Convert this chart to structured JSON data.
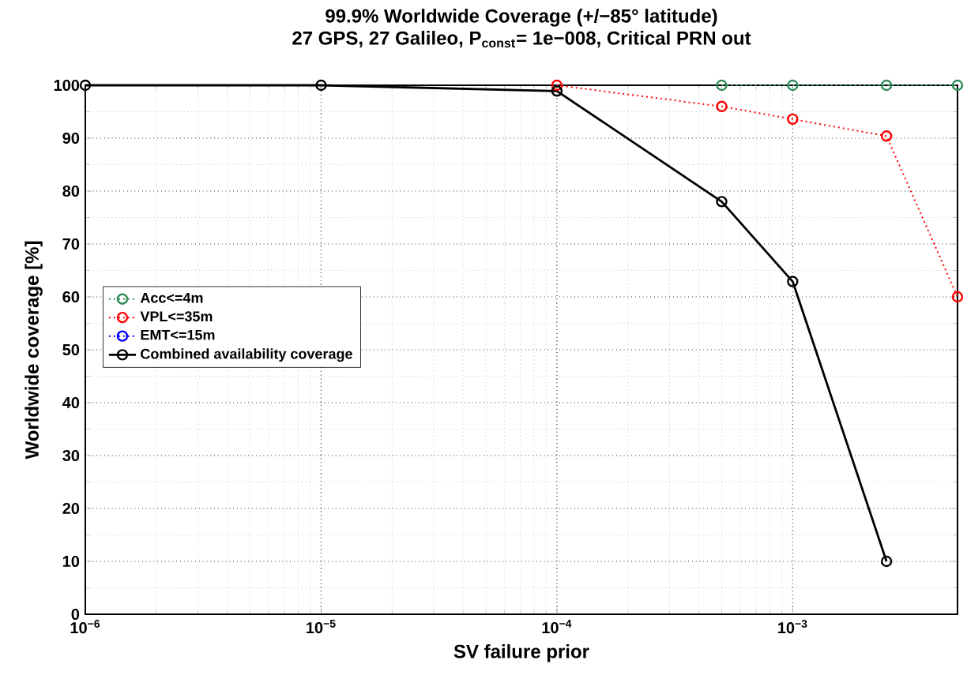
{
  "chart_data": {
    "type": "line",
    "title": "99.9% Worldwide Coverage (+/−85° latitude)",
    "subtitle": "27 GPS, 27 Galileo,  P$_{const}$= 1e−008, Critical PRN out",
    "xlabel": "SV failure prior",
    "ylabel": "Worldwide coverage [%]",
    "x": [
      1e-06,
      1e-05,
      0.0001,
      0.0005,
      0.001,
      0.0025,
      0.005
    ],
    "series": [
      {
        "name": "Acc<=4m",
        "color": "#2e8b57",
        "values": [
          null,
          null,
          null,
          100,
          100,
          100,
          100
        ],
        "line_style": "dotted",
        "marker": "circle"
      },
      {
        "name": "VPL<=35m",
        "color": "#ff0000",
        "values": [
          null,
          null,
          100,
          96,
          93.6,
          90.4,
          60
        ],
        "line_style": "dotted",
        "marker": "circle"
      },
      {
        "name": "EMT<=15m",
        "color": "#0000ff",
        "values": [
          null,
          null,
          null,
          null,
          null,
          null,
          null
        ],
        "line_style": "dotted",
        "marker": "circle"
      },
      {
        "name": "Combined availability coverage",
        "color": "#000000",
        "values": [
          100,
          100,
          98.9,
          78,
          62.9,
          10,
          null
        ],
        "line_style": "solid",
        "marker": "circle"
      }
    ],
    "log": "x",
    "xlim": [
      1e-06,
      0.005
    ],
    "xticks": [
      {
        "value": 1e-06,
        "label": "10$^{−6}$"
      },
      {
        "value": 1e-05,
        "label": "10$^{−5}$"
      },
      {
        "value": 0.0001,
        "label": "10$^{−4}$"
      },
      {
        "value": 0.001,
        "label": "10$^{−3}$"
      }
    ],
    "ylim": [
      0,
      100
    ],
    "yticks": [
      0,
      10,
      20,
      30,
      40,
      50,
      60,
      70,
      80,
      90,
      100
    ],
    "grid": true,
    "legend": "left"
  }
}
